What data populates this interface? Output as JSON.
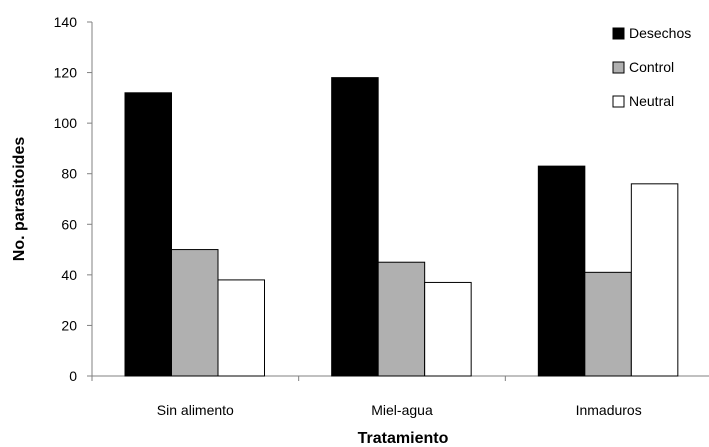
{
  "chart_data": {
    "type": "bar",
    "title": "",
    "xlabel": "Tratamiento",
    "ylabel": "No. parasitoides",
    "categories": [
      "Sin alimento",
      "Miel-agua",
      "Inmaduros"
    ],
    "ylim": [
      0,
      140
    ],
    "yticks": [
      0,
      20,
      40,
      60,
      80,
      100,
      120,
      140
    ],
    "grid": false,
    "legend_position": "top-right",
    "series": [
      {
        "name": "Desechos",
        "values": [
          112,
          118,
          83
        ],
        "color": "#000000"
      },
      {
        "name": "Control",
        "values": [
          50,
          45,
          41
        ],
        "color": "#b0b0b0"
      },
      {
        "name": "Neutral",
        "values": [
          38,
          37,
          76
        ],
        "color": "#ffffff"
      }
    ]
  }
}
